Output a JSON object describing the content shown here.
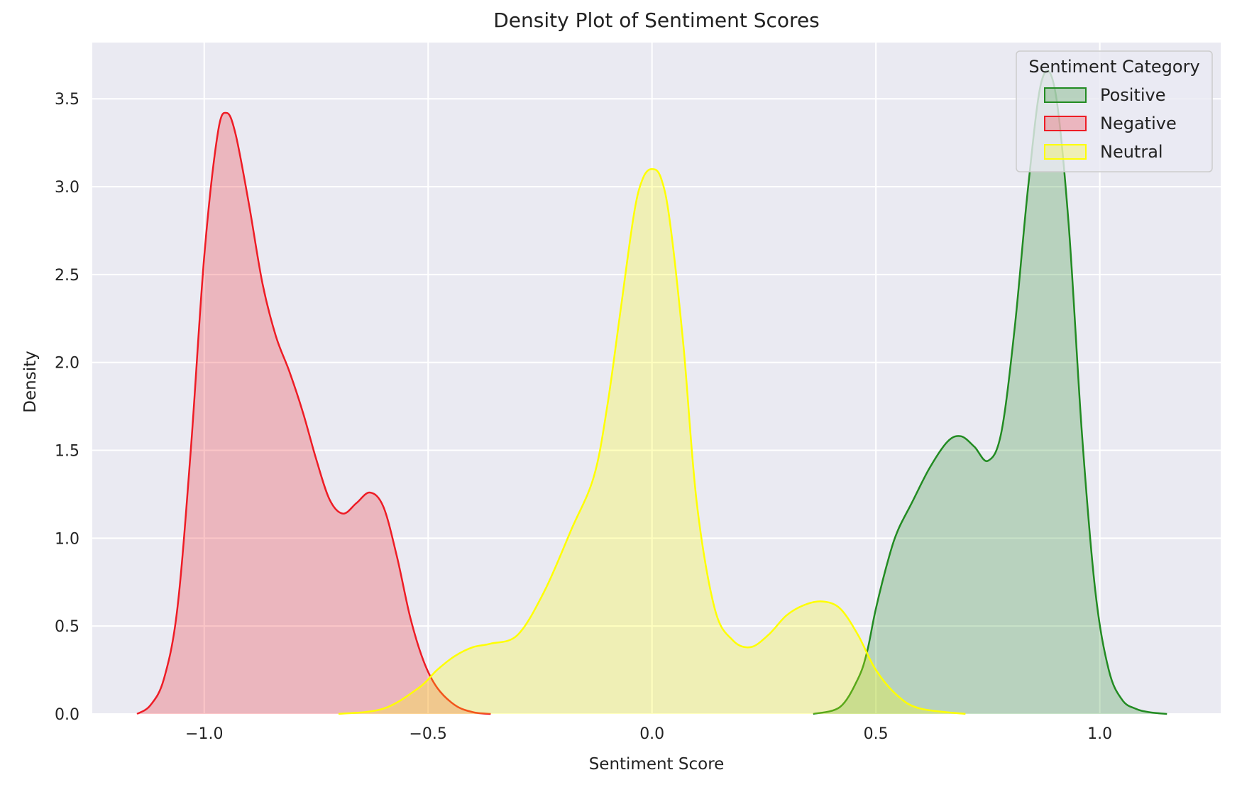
{
  "chart_data": {
    "type": "area",
    "title": "Density Plot of Sentiment Scores",
    "xlabel": "Sentiment Score",
    "ylabel": "Density",
    "xlim": [
      -1.25,
      1.27
    ],
    "ylim": [
      0,
      3.82
    ],
    "xticks": [
      -1.0,
      -0.5,
      0.0,
      0.5,
      1.0
    ],
    "xtick_labels": [
      "−1.0",
      "−0.5",
      "0.0",
      "0.5",
      "1.0"
    ],
    "yticks": [
      0.0,
      0.5,
      1.0,
      1.5,
      2.0,
      2.5,
      3.0,
      3.5
    ],
    "ytick_labels": [
      "0.0",
      "0.5",
      "1.0",
      "1.5",
      "2.0",
      "2.5",
      "3.0",
      "3.5"
    ],
    "grid": true,
    "background": "#eaeaf2",
    "legend": {
      "title": "Sentiment Category",
      "placement": "top-right"
    },
    "series": [
      {
        "name": "Positive",
        "color": "#228b22",
        "fill": "#7bb87b",
        "x": [
          0.36,
          0.42,
          0.46,
          0.48,
          0.5,
          0.53,
          0.55,
          0.58,
          0.62,
          0.66,
          0.69,
          0.72,
          0.75,
          0.78,
          0.81,
          0.84,
          0.87,
          0.9,
          0.93,
          0.96,
          0.99,
          1.02,
          1.05,
          1.08,
          1.11,
          1.15
        ],
        "y": [
          0.0,
          0.04,
          0.2,
          0.35,
          0.6,
          0.9,
          1.05,
          1.2,
          1.4,
          1.55,
          1.58,
          1.52,
          1.44,
          1.6,
          2.2,
          3.0,
          3.6,
          3.55,
          2.8,
          1.6,
          0.7,
          0.25,
          0.08,
          0.03,
          0.01,
          0.0
        ]
      },
      {
        "name": "Negative",
        "color": "#ee1c25",
        "fill": "#e08a92",
        "x": [
          -1.15,
          -1.12,
          -1.09,
          -1.06,
          -1.03,
          -1.0,
          -0.97,
          -0.95,
          -0.93,
          -0.9,
          -0.87,
          -0.84,
          -0.81,
          -0.78,
          -0.75,
          -0.72,
          -0.69,
          -0.66,
          -0.63,
          -0.6,
          -0.57,
          -0.54,
          -0.51,
          -0.48,
          -0.44,
          -0.4,
          -0.36
        ],
        "y": [
          0.0,
          0.05,
          0.2,
          0.6,
          1.5,
          2.6,
          3.3,
          3.42,
          3.3,
          2.9,
          2.45,
          2.15,
          1.95,
          1.72,
          1.45,
          1.22,
          1.14,
          1.2,
          1.26,
          1.18,
          0.9,
          0.55,
          0.3,
          0.15,
          0.05,
          0.01,
          0.0
        ]
      },
      {
        "name": "Neutral",
        "color": "#ffff00",
        "fill": "#ecec9a",
        "x": [
          -0.7,
          -0.6,
          -0.52,
          -0.48,
          -0.44,
          -0.4,
          -0.36,
          -0.3,
          -0.24,
          -0.18,
          -0.13,
          -0.1,
          -0.07,
          -0.04,
          -0.02,
          0.0,
          0.02,
          0.04,
          0.07,
          0.1,
          0.14,
          0.18,
          0.22,
          0.26,
          0.3,
          0.34,
          0.38,
          0.42,
          0.46,
          0.5,
          0.55,
          0.6,
          0.7
        ],
        "y": [
          0.0,
          0.03,
          0.15,
          0.25,
          0.33,
          0.38,
          0.4,
          0.45,
          0.7,
          1.05,
          1.35,
          1.75,
          2.3,
          2.85,
          3.05,
          3.1,
          3.05,
          2.8,
          2.1,
          1.2,
          0.6,
          0.42,
          0.38,
          0.45,
          0.56,
          0.62,
          0.64,
          0.6,
          0.45,
          0.25,
          0.1,
          0.03,
          0.0
        ]
      }
    ]
  }
}
